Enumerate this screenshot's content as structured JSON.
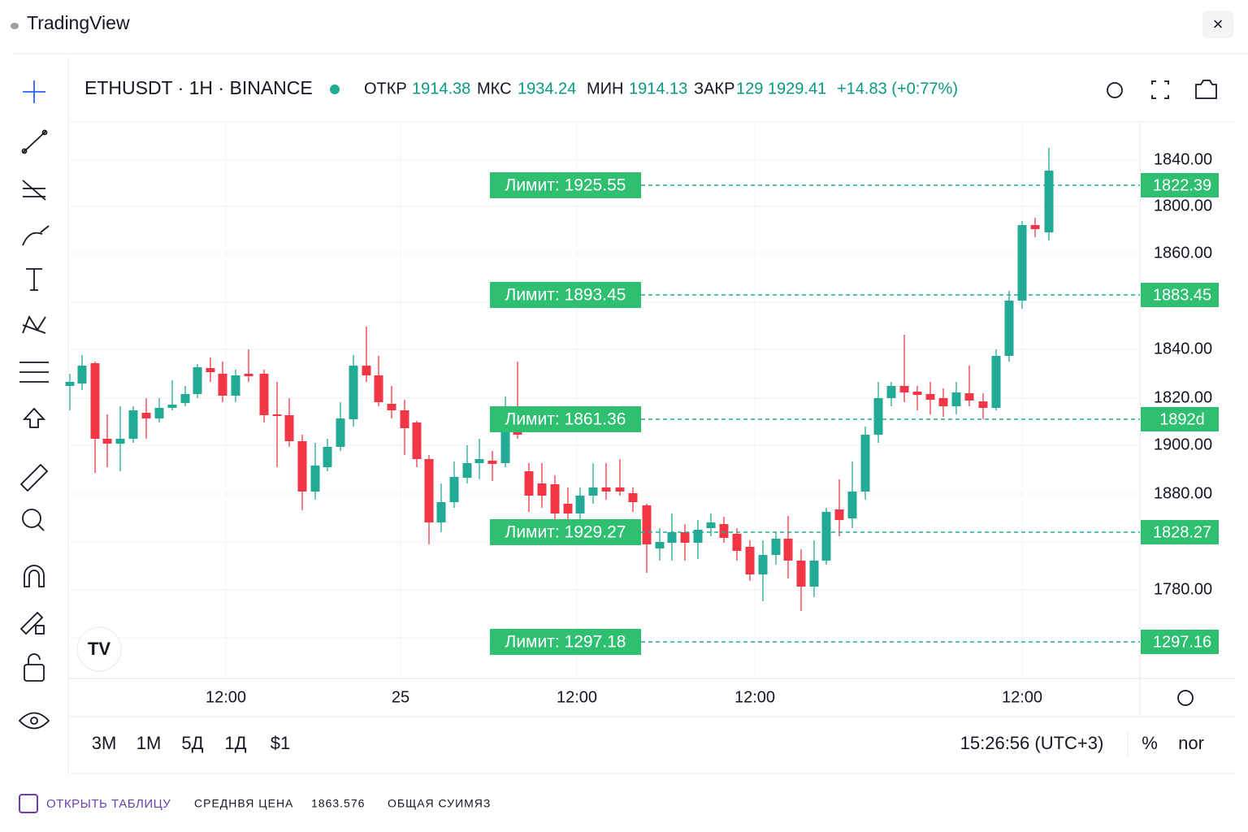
{
  "header": {
    "title": "TradingView",
    "close": "×"
  },
  "symbol": {
    "name": "ETHUSDT · 1H · BINANCE",
    "open_label": "ОТКР",
    "open": "1914.38",
    "high_label": "МКС",
    "high": "1934.24",
    "low_label": "МИН",
    "low": "1914.13",
    "close_label": "ЗАКР",
    "close": "129 1929.41",
    "change": "+14.83 (+0:77%)"
  },
  "price_axis": [
    "1840.00",
    "1800.00",
    "1860.00",
    "1840.00",
    "1820.00",
    "1900.00",
    "1880.00",
    "1780.00"
  ],
  "time_axis": [
    "12:00",
    "25",
    "12:00",
    "12:00",
    "12:00"
  ],
  "limits": [
    {
      "label": "Лимит: 1925.55",
      "price": "1822.39"
    },
    {
      "label": "Лимит: 1893.45",
      "price": "1883.45"
    },
    {
      "label": "Лимит: 1861.36",
      "price": "1892d"
    },
    {
      "label": "Лимит: 1929.27",
      "price": "1828.27"
    },
    {
      "label": "Лимит: 1297.18",
      "price": "1297.16"
    }
  ],
  "ranges": [
    "3M",
    "1M",
    "5Д",
    "1Д",
    "$1"
  ],
  "clock": "15:26:56 (UTC+3)",
  "percent": "%",
  "scale": "nor",
  "footer": {
    "open_table": "ОТКРЫТЬ ТАБЛИЦУ",
    "avg_label": "СРЕДНВЯ ЦЕНА",
    "avg_value": "1863.576",
    "total_label": "ОБЩАЯ СУИМЯЗ"
  }
}
